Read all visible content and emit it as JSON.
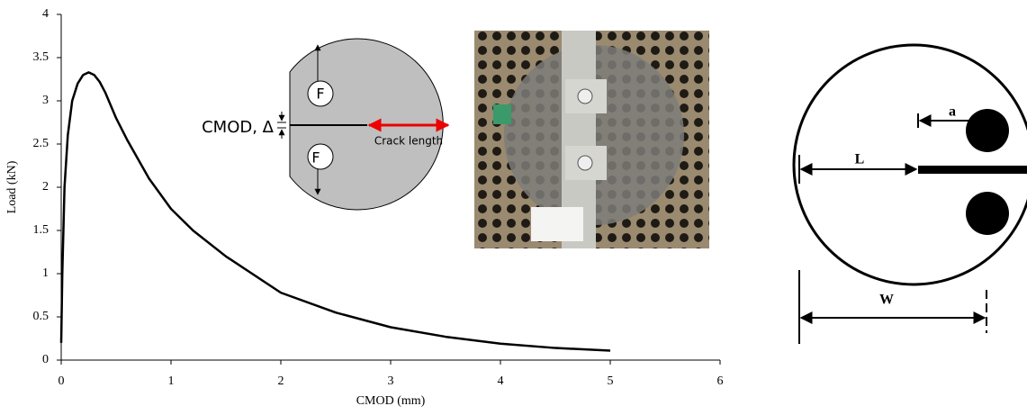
{
  "chart_data": {
    "type": "line",
    "x_label": "CMOD (mm)",
    "y_label": "Load (kN)",
    "x": [
      0,
      0.01,
      0.03,
      0.06,
      0.1,
      0.15,
      0.2,
      0.25,
      0.3,
      0.35,
      0.4,
      0.5,
      0.6,
      0.8,
      1.0,
      1.2,
      1.5,
      2.0,
      2.5,
      3.0,
      3.5,
      4.0,
      4.5,
      5.0
    ],
    "series": [
      {
        "color": "#000000",
        "values": [
          0.2,
          1.0,
          2.0,
          2.6,
          3.0,
          3.2,
          3.3,
          3.33,
          3.3,
          3.22,
          3.1,
          2.8,
          2.55,
          2.1,
          1.75,
          1.5,
          1.2,
          0.78,
          0.55,
          0.38,
          0.27,
          0.19,
          0.14,
          0.11
        ]
      }
    ],
    "xlim": [
      0,
      6
    ],
    "ylim": [
      0,
      4
    ],
    "xticks": [
      0,
      1,
      2,
      3,
      4,
      5,
      6
    ],
    "yticks": [
      0,
      0.5,
      1,
      1.5,
      2,
      2.5,
      3,
      3.5,
      4
    ],
    "grid": false
  },
  "annotations": {
    "cmod": "CMOD, Δ",
    "force_top": "F",
    "force_bottom": "F",
    "crack_length": "Crack length",
    "ligament": "L",
    "notch": "a",
    "width": "W"
  }
}
